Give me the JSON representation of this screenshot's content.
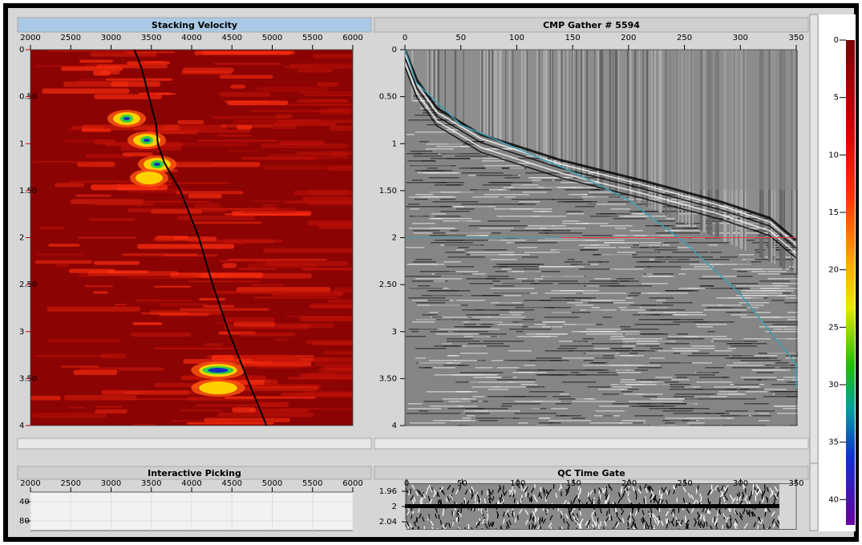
{
  "panels": [
    {
      "title": "Stacking Velocity",
      "xlim": [
        2000,
        6000
      ],
      "xticks": [
        2000,
        2500,
        3000,
        3500,
        4000,
        4500,
        5000,
        5500,
        6000
      ],
      "ylim": [
        0,
        4
      ],
      "yticks": [
        0,
        {
          "value": 0.5,
          "label": "0.50"
        },
        1,
        {
          "value": 1.5,
          "label": "1.50"
        },
        2,
        {
          "value": 2.5,
          "label": "2.50"
        },
        3,
        {
          "value": 3.5,
          "label": "3.50"
        },
        4
      ],
      "picks": {
        "x": [
          3290,
          3380,
          3560,
          3580,
          3660,
          3860,
          4090,
          4260,
          4460,
          4690,
          4930
        ],
        "y": [
          0,
          0.2,
          0.8,
          1,
          1.2,
          1.5,
          2,
          2.5,
          3,
          3.5,
          4
        ]
      }
    },
    {
      "title": "CMP Gather # 5594",
      "xlim": [
        0,
        350
      ],
      "xticks": [
        0,
        50,
        100,
        150,
        200,
        250,
        300,
        350
      ],
      "ylim": [
        0,
        4
      ],
      "yticks": [
        0,
        {
          "value": 0.5,
          "label": "0.50"
        },
        1,
        {
          "value": 1.5,
          "label": "1.50"
        },
        2,
        {
          "value": 2.5,
          "label": "2.50"
        },
        3,
        {
          "value": 3.5,
          "label": "3.50"
        },
        4
      ],
      "moveout": {
        "x": [
          0,
          10,
          50,
          100,
          150,
          200,
          250,
          300,
          340,
          350,
          350
        ],
        "y": [
          0,
          0.35,
          0.8,
          1.05,
          1.3,
          1.6,
          2.05,
          2.6,
          3.2,
          3.35,
          3.6
        ]
      },
      "gate_time": 2
    },
    {
      "title": "Interactive Picking",
      "xlim": [
        2000,
        6000
      ],
      "xticks": [
        2000,
        2500,
        3000,
        3500,
        4000,
        4500,
        5000,
        5500,
        6000
      ],
      "ylim": [
        20,
        100
      ],
      "yticks": [
        40,
        80
      ]
    },
    {
      "title": "QC Time Gate",
      "xlim": [
        0,
        350
      ],
      "xticks": [
        0,
        50,
        100,
        150,
        200,
        250,
        300,
        350
      ],
      "ylim": [
        1.94,
        2.06
      ],
      "yticks": [
        1.96,
        2,
        2.04
      ]
    }
  ],
  "colorbar": {
    "lim": [
      0,
      42
    ],
    "ticks": [
      0,
      5,
      10,
      15,
      20,
      25,
      30,
      35,
      40
    ]
  }
}
